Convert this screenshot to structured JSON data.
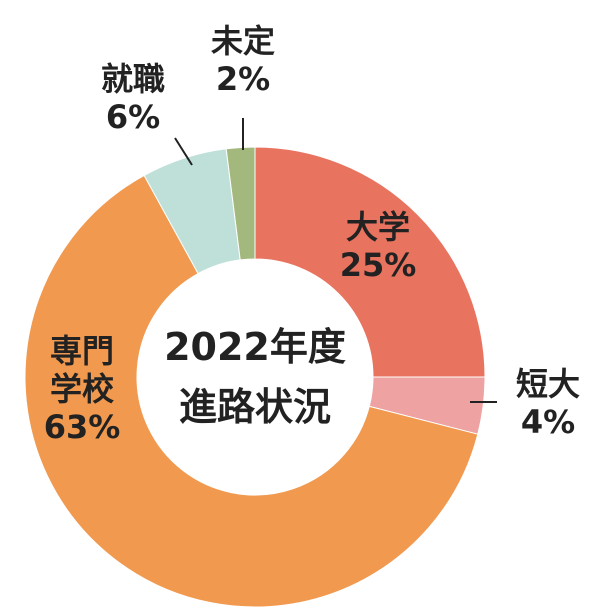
{
  "chart_data": {
    "type": "pie",
    "title": "2022年度\n進路状況",
    "title_lines": [
      "2022年度",
      "進路状況"
    ],
    "slices": [
      {
        "name": "大学",
        "value": 25,
        "label": "25%",
        "color": "#E8735F"
      },
      {
        "name": "短大",
        "value": 4,
        "label": "4%",
        "color": "#EFA2A2"
      },
      {
        "name": "専門学校",
        "name_lines": [
          "専門",
          "学校"
        ],
        "value": 63,
        "label": "63%",
        "color": "#F0994F"
      },
      {
        "name": "就職",
        "value": 6,
        "label": "6%",
        "color": "#BFE0D8"
      },
      {
        "name": "未定",
        "value": 2,
        "label": "2%",
        "color": "#A3B87C"
      }
    ],
    "legend": "none"
  }
}
